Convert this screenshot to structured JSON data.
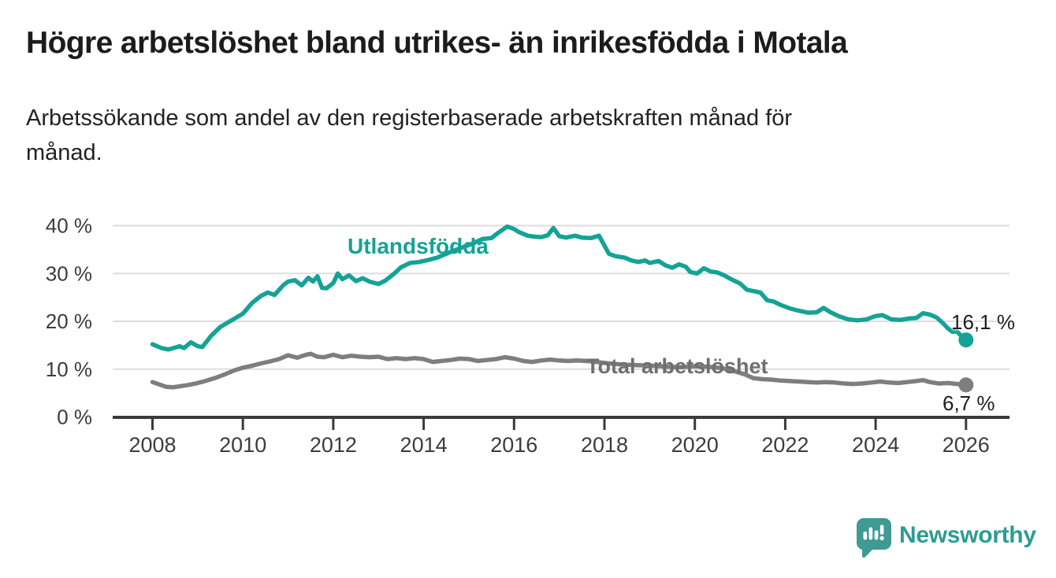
{
  "header": {
    "title": "Högre arbetslöshet bland utrikes- än inrikesfödda i Motala",
    "subtitle_line1": "Arbetssökande som andel av den registerbaserade arbetskraften månad för",
    "subtitle_line2": "månad."
  },
  "colors": {
    "foreign_born_line": "#14a396",
    "total_line": "#7e7e7e",
    "axis": "#3a3a3a",
    "gridline": "#dedede",
    "tick_text": "#3c3c3c",
    "title_text": "#1c1c1c",
    "logo_bubble": "#3e9a93",
    "logo_text": "#2d9c93"
  },
  "chart_data": {
    "type": "line",
    "title": "",
    "xlabel": "",
    "ylabel": "",
    "grid": true,
    "xlim": [
      2007.12,
      2026.96
    ],
    "ylim": [
      0,
      40
    ],
    "x_tick_labels": [
      "2008",
      "2010",
      "2012",
      "2014",
      "2016",
      "2018",
      "2020",
      "2022",
      "2024",
      "2026"
    ],
    "x_tick_years": [
      2008,
      2010,
      2012,
      2014,
      2016,
      2018,
      2020,
      2022,
      2024,
      2026
    ],
    "y_tick_labels": [
      "0 %",
      "10 %",
      "20 %",
      "30 %",
      "40 %"
    ],
    "y_tick_values": [
      0,
      10,
      20,
      30,
      40
    ],
    "series": [
      {
        "name": "Utlandsfödda",
        "color": "#14a396",
        "end_label": "16,1 %",
        "end_value": 16.1,
        "x": [
          2008.0,
          2008.2,
          2008.35,
          2008.5,
          2008.6,
          2008.7,
          2008.85,
          2009.0,
          2009.1,
          2009.3,
          2009.5,
          2009.75,
          2010.0,
          2010.2,
          2010.4,
          2010.55,
          2010.7,
          2010.9,
          2011.0,
          2011.15,
          2011.3,
          2011.45,
          2011.55,
          2011.65,
          2011.75,
          2011.85,
          2012.0,
          2012.1,
          2012.2,
          2012.35,
          2012.5,
          2012.65,
          2012.8,
          2013.0,
          2013.15,
          2013.35,
          2013.5,
          2013.7,
          2013.9,
          2014.1,
          2014.3,
          2014.6,
          2014.9,
          2015.1,
          2015.3,
          2015.5,
          2015.65,
          2015.85,
          2016.0,
          2016.1,
          2016.3,
          2016.45,
          2016.6,
          2016.75,
          2016.87,
          2017.0,
          2017.15,
          2017.35,
          2017.5,
          2017.7,
          2017.88,
          2018.1,
          2018.25,
          2018.45,
          2018.6,
          2018.75,
          2018.9,
          2019.0,
          2019.2,
          2019.35,
          2019.5,
          2019.65,
          2019.8,
          2019.9,
          2020.05,
          2020.2,
          2020.35,
          2020.5,
          2020.65,
          2020.8,
          2021.0,
          2021.15,
          2021.3,
          2021.45,
          2021.6,
          2021.75,
          2021.9,
          2022.1,
          2022.3,
          2022.5,
          2022.7,
          2022.85,
          2023.0,
          2023.2,
          2023.4,
          2023.6,
          2023.8,
          2024.0,
          2024.15,
          2024.35,
          2024.55,
          2024.75,
          2024.9,
          2025.05,
          2025.2,
          2025.35,
          2025.5,
          2025.6,
          2025.7,
          2025.8,
          2025.9,
          2026.0
        ],
        "values": [
          15.2,
          14.4,
          14.1,
          14.5,
          14.8,
          14.4,
          15.6,
          14.8,
          14.6,
          17.0,
          18.8,
          20.2,
          21.6,
          23.8,
          25.3,
          26.0,
          25.5,
          27.6,
          28.3,
          28.6,
          27.5,
          29.1,
          28.3,
          29.4,
          27.0,
          26.9,
          28.0,
          30.0,
          28.8,
          29.6,
          28.4,
          29.0,
          28.3,
          27.8,
          28.5,
          30.0,
          31.3,
          32.2,
          32.4,
          32.8,
          33.3,
          34.5,
          35.6,
          36.3,
          37.2,
          37.4,
          38.5,
          39.8,
          39.3,
          38.7,
          37.9,
          37.7,
          37.6,
          38.0,
          39.5,
          37.8,
          37.5,
          37.9,
          37.5,
          37.4,
          37.9,
          34.1,
          33.6,
          33.3,
          32.7,
          32.4,
          32.7,
          32.2,
          32.6,
          31.7,
          31.2,
          31.9,
          31.4,
          30.3,
          30.0,
          31.1,
          30.4,
          30.2,
          29.6,
          28.8,
          27.9,
          26.6,
          26.3,
          26.0,
          24.4,
          24.1,
          23.4,
          22.7,
          22.2,
          21.8,
          21.9,
          22.8,
          21.9,
          21.0,
          20.4,
          20.2,
          20.4,
          21.1,
          21.3,
          20.4,
          20.3,
          20.6,
          20.7,
          21.7,
          21.4,
          20.8,
          19.5,
          18.5,
          17.8,
          17.9,
          16.9,
          16.1
        ]
      },
      {
        "name": "Total arbetslöshet",
        "color": "#7e7e7e",
        "end_label": "6,7 %",
        "end_value": 6.7,
        "x": [
          2008.0,
          2008.15,
          2008.3,
          2008.45,
          2008.6,
          2008.8,
          2009.0,
          2009.2,
          2009.4,
          2009.6,
          2009.8,
          2010.0,
          2010.2,
          2010.4,
          2010.6,
          2010.8,
          2011.0,
          2011.2,
          2011.4,
          2011.5,
          2011.65,
          2011.8,
          2012.0,
          2012.2,
          2012.4,
          2012.6,
          2012.8,
          2013.0,
          2013.2,
          2013.4,
          2013.6,
          2013.8,
          2014.0,
          2014.2,
          2014.4,
          2014.6,
          2014.8,
          2015.0,
          2015.2,
          2015.4,
          2015.6,
          2015.8,
          2016.0,
          2016.2,
          2016.4,
          2016.6,
          2016.8,
          2017.0,
          2017.2,
          2017.4,
          2017.6,
          2017.9,
          2018.2,
          2018.5,
          2018.8,
          2019.1,
          2019.4,
          2019.7,
          2020.0,
          2020.3,
          2020.6,
          2020.9,
          2021.1,
          2021.3,
          2021.5,
          2021.7,
          2021.9,
          2022.1,
          2022.3,
          2022.5,
          2022.7,
          2022.9,
          2023.1,
          2023.3,
          2023.5,
          2023.7,
          2023.9,
          2024.1,
          2024.3,
          2024.5,
          2024.7,
          2024.9,
          2025.05,
          2025.2,
          2025.4,
          2025.6,
          2025.8,
          2026.0
        ],
        "values": [
          7.3,
          6.8,
          6.3,
          6.2,
          6.4,
          6.7,
          7.1,
          7.6,
          8.2,
          8.9,
          9.7,
          10.3,
          10.7,
          11.2,
          11.6,
          12.1,
          12.9,
          12.4,
          13.0,
          13.2,
          12.6,
          12.5,
          13.0,
          12.5,
          12.8,
          12.6,
          12.5,
          12.6,
          12.1,
          12.3,
          12.1,
          12.3,
          12.1,
          11.5,
          11.7,
          11.9,
          12.2,
          12.1,
          11.7,
          11.9,
          12.1,
          12.5,
          12.2,
          11.7,
          11.5,
          11.8,
          12.0,
          11.8,
          11.7,
          11.8,
          11.7,
          11.4,
          11.1,
          10.9,
          10.8,
          10.7,
          10.5,
          10.4,
          10.6,
          10.5,
          10.2,
          9.5,
          8.9,
          8.1,
          7.9,
          7.8,
          7.6,
          7.5,
          7.4,
          7.3,
          7.2,
          7.3,
          7.2,
          7.0,
          6.9,
          7.0,
          7.2,
          7.4,
          7.2,
          7.1,
          7.3,
          7.5,
          7.7,
          7.3,
          7.0,
          7.1,
          6.9,
          6.7
        ]
      }
    ],
    "legend_position": "inline-labels"
  },
  "annotations": {
    "series0_label": "Utlandsfödda",
    "series1_label": "Total arbetslöshet",
    "end_label_teal": "16,1 %",
    "end_label_gray": "6,7 %"
  },
  "footer": {
    "brand": "Newsworthy"
  }
}
